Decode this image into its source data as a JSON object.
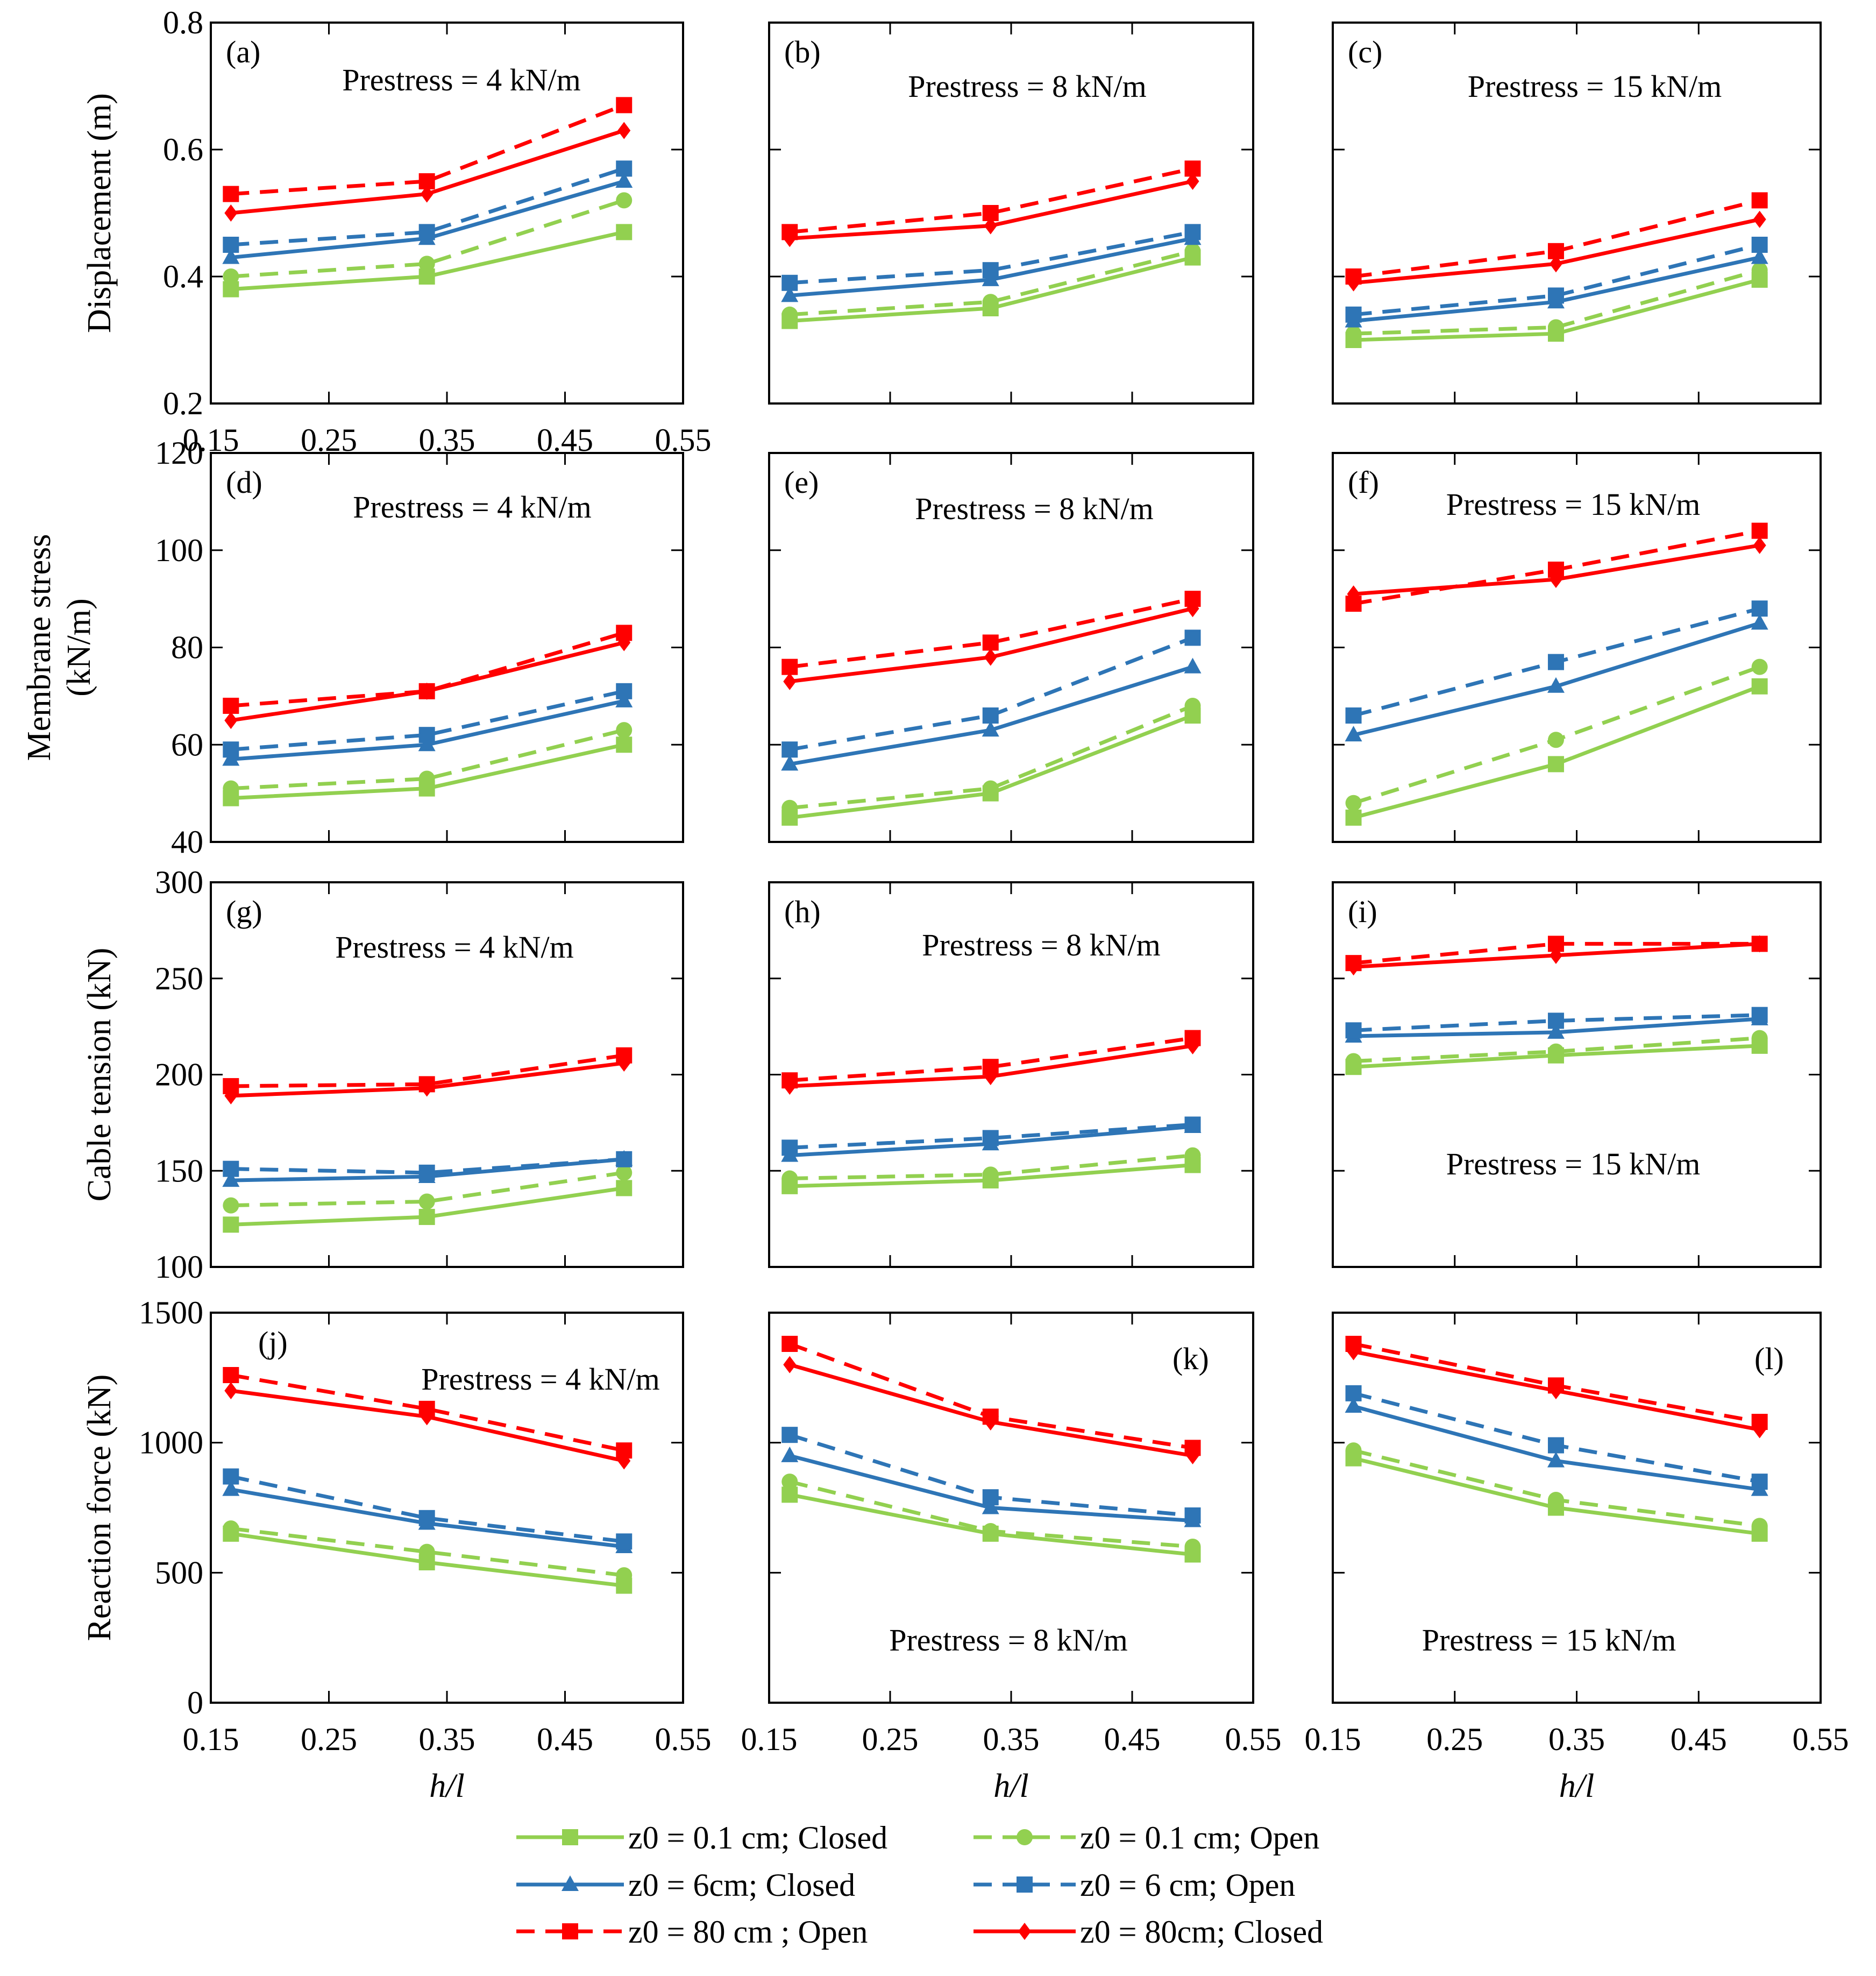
{
  "figure": {
    "legend": [
      {
        "key": "s1",
        "label": "z0 = 0.1 cm; Closed",
        "color": "#92d050",
        "dash": false,
        "marker": "square"
      },
      {
        "key": "s2",
        "label": "z0 = 0.1 cm; Open",
        "color": "#92d050",
        "dash": true,
        "marker": "circle"
      },
      {
        "key": "s3",
        "label": "z0 = 6cm; Closed",
        "color": "#2e75b6",
        "dash": false,
        "marker": "triangle"
      },
      {
        "key": "s4",
        "label": "z0 = 6 cm; Open",
        "color": "#2e75b6",
        "dash": true,
        "marker": "square"
      },
      {
        "key": "s5",
        "label": "z0 = 80 cm ; Open",
        "color": "#ff0000",
        "dash": true,
        "marker": "square"
      },
      {
        "key": "s6",
        "label": "z0 = 80cm; Closed",
        "color": "#ff0000",
        "dash": false,
        "marker": "diamond"
      }
    ]
  },
  "chart_data": [
    {
      "id": "a",
      "type": "line",
      "row": 0,
      "col": 0,
      "title": "(a)",
      "annotation": "Prestress = 4 kN/m",
      "annotation_position": "top",
      "ylabel": "Displacement (m)",
      "ylim": [
        0.2,
        0.8
      ],
      "yticks": [
        0.2,
        0.4,
        0.6,
        0.8
      ],
      "ytick_labels": [
        "0.2",
        "0.4",
        "0.6",
        "0.8"
      ],
      "xlim": [
        0.15,
        0.55
      ],
      "xticks": [
        0.15,
        0.25,
        0.35,
        0.45,
        0.55
      ],
      "xtick_labels": [
        "0.15",
        "0.25",
        "0.35",
        "0.45",
        "0.55"
      ],
      "xlabel": "",
      "x": [
        0.167,
        0.333,
        0.5
      ],
      "series": [
        {
          "key": "s1",
          "values": [
            0.38,
            0.4,
            0.47
          ]
        },
        {
          "key": "s2",
          "values": [
            0.4,
            0.42,
            0.52
          ]
        },
        {
          "key": "s3",
          "values": [
            0.43,
            0.46,
            0.55
          ]
        },
        {
          "key": "s4",
          "values": [
            0.45,
            0.47,
            0.57
          ]
        },
        {
          "key": "s5",
          "values": [
            0.53,
            0.55,
            0.67
          ]
        },
        {
          "key": "s6",
          "values": [
            0.5,
            0.53,
            0.63
          ]
        }
      ]
    },
    {
      "id": "b",
      "type": "line",
      "row": 0,
      "col": 1,
      "title": "(b)",
      "annotation": "Prestress = 8 kN/m",
      "annotation_position": "top",
      "ylabel": "",
      "ylim": [
        0.2,
        0.8
      ],
      "yticks": [
        0.2,
        0.4,
        0.6,
        0.8
      ],
      "ytick_labels": [],
      "xlim": [
        0.15,
        0.55
      ],
      "xticks": [
        0.15,
        0.25,
        0.35,
        0.45,
        0.55
      ],
      "xtick_labels": [],
      "xlabel": "",
      "x": [
        0.167,
        0.333,
        0.5
      ],
      "series": [
        {
          "key": "s1",
          "values": [
            0.33,
            0.35,
            0.43
          ]
        },
        {
          "key": "s2",
          "values": [
            0.34,
            0.36,
            0.44
          ]
        },
        {
          "key": "s3",
          "values": [
            0.37,
            0.395,
            0.46
          ]
        },
        {
          "key": "s4",
          "values": [
            0.39,
            0.41,
            0.47
          ]
        },
        {
          "key": "s5",
          "values": [
            0.47,
            0.5,
            0.57
          ]
        },
        {
          "key": "s6",
          "values": [
            0.46,
            0.48,
            0.55
          ]
        }
      ]
    },
    {
      "id": "c",
      "type": "line",
      "row": 0,
      "col": 2,
      "title": "(c)",
      "annotation": "Prestress = 15 kN/m",
      "annotation_position": "top",
      "ylabel": "",
      "ylim": [
        0.2,
        0.8
      ],
      "yticks": [
        0.2,
        0.4,
        0.6,
        0.8
      ],
      "ytick_labels": [],
      "xlim": [
        0.15,
        0.55
      ],
      "xticks": [
        0.15,
        0.25,
        0.35,
        0.45,
        0.55
      ],
      "xtick_labels": [],
      "xlabel": "",
      "x": [
        0.167,
        0.333,
        0.5
      ],
      "series": [
        {
          "key": "s1",
          "values": [
            0.3,
            0.31,
            0.395
          ]
        },
        {
          "key": "s2",
          "values": [
            0.31,
            0.32,
            0.41
          ]
        },
        {
          "key": "s3",
          "values": [
            0.33,
            0.36,
            0.43
          ]
        },
        {
          "key": "s4",
          "values": [
            0.34,
            0.37,
            0.45
          ]
        },
        {
          "key": "s5",
          "values": [
            0.4,
            0.44,
            0.52
          ]
        },
        {
          "key": "s6",
          "values": [
            0.39,
            0.42,
            0.49
          ]
        }
      ]
    },
    {
      "id": "d",
      "type": "line",
      "row": 1,
      "col": 0,
      "title": "(d)",
      "annotation": "Prestress = 4 kN/m",
      "annotation_position": "top",
      "ylabel": "Membrane stress (kN/m)",
      "ylim": [
        40,
        120
      ],
      "yticks": [
        40,
        60,
        80,
        100,
        120
      ],
      "ytick_labels": [
        "40",
        "60",
        "80",
        "100",
        "120"
      ],
      "xlim": [
        0.15,
        0.55
      ],
      "xticks": [
        0.15,
        0.25,
        0.35,
        0.45,
        0.55
      ],
      "xtick_labels": [],
      "xlabel": "",
      "x": [
        0.167,
        0.333,
        0.5
      ],
      "series": [
        {
          "key": "s1",
          "values": [
            49,
            51,
            60
          ]
        },
        {
          "key": "s2",
          "values": [
            51,
            53,
            63
          ]
        },
        {
          "key": "s3",
          "values": [
            57,
            60,
            69
          ]
        },
        {
          "key": "s4",
          "values": [
            59,
            62,
            71
          ]
        },
        {
          "key": "s5",
          "values": [
            68,
            71,
            83
          ]
        },
        {
          "key": "s6",
          "values": [
            65,
            71,
            81
          ]
        }
      ]
    },
    {
      "id": "e",
      "type": "line",
      "row": 1,
      "col": 1,
      "title": "(e)",
      "annotation": "Prestress = 8 kN/m",
      "annotation_position": "top",
      "ylabel": "",
      "ylim": [
        40,
        120
      ],
      "yticks": [
        40,
        60,
        80,
        100,
        120
      ],
      "ytick_labels": [],
      "xlim": [
        0.15,
        0.55
      ],
      "xticks": [
        0.15,
        0.25,
        0.35,
        0.45,
        0.55
      ],
      "xtick_labels": [],
      "xlabel": "",
      "x": [
        0.167,
        0.333,
        0.5
      ],
      "series": [
        {
          "key": "s1",
          "values": [
            45,
            50,
            66
          ]
        },
        {
          "key": "s2",
          "values": [
            47,
            51,
            68
          ]
        },
        {
          "key": "s3",
          "values": [
            56,
            63,
            76
          ]
        },
        {
          "key": "s4",
          "values": [
            59,
            66,
            82
          ]
        },
        {
          "key": "s5",
          "values": [
            76,
            81,
            90
          ]
        },
        {
          "key": "s6",
          "values": [
            73,
            78,
            88
          ]
        }
      ]
    },
    {
      "id": "f",
      "type": "line",
      "row": 1,
      "col": 2,
      "title": "(f)",
      "annotation": "Prestress = 15 kN/m",
      "annotation_position": "top",
      "ylabel": "",
      "ylim": [
        40,
        120
      ],
      "yticks": [
        40,
        60,
        80,
        100,
        120
      ],
      "ytick_labels": [],
      "xlim": [
        0.15,
        0.55
      ],
      "xticks": [
        0.15,
        0.25,
        0.35,
        0.45,
        0.55
      ],
      "xtick_labels": [],
      "xlabel": "",
      "x": [
        0.167,
        0.333,
        0.5
      ],
      "series": [
        {
          "key": "s1",
          "values": [
            45,
            56,
            72
          ]
        },
        {
          "key": "s2",
          "values": [
            48,
            61,
            76
          ]
        },
        {
          "key": "s3",
          "values": [
            62,
            72,
            85
          ]
        },
        {
          "key": "s4",
          "values": [
            66,
            77,
            88
          ]
        },
        {
          "key": "s5",
          "values": [
            89,
            96,
            104
          ]
        },
        {
          "key": "s6",
          "values": [
            91,
            94,
            101
          ]
        }
      ]
    },
    {
      "id": "g",
      "type": "line",
      "row": 2,
      "col": 0,
      "title": "(g)",
      "annotation": "Prestress = 4 kN/m",
      "annotation_position": "top",
      "ylabel": "Cable tension (kN)",
      "ylim": [
        100,
        300
      ],
      "yticks": [
        100,
        150,
        200,
        250,
        300
      ],
      "ytick_labels": [
        "100",
        "150",
        "200",
        "250",
        "300"
      ],
      "xlim": [
        0.15,
        0.55
      ],
      "xticks": [
        0.15,
        0.25,
        0.35,
        0.45,
        0.55
      ],
      "xtick_labels": [],
      "xlabel": "",
      "x": [
        0.167,
        0.333,
        0.5
      ],
      "series": [
        {
          "key": "s1",
          "values": [
            122,
            126,
            141
          ]
        },
        {
          "key": "s2",
          "values": [
            132,
            134,
            149
          ]
        },
        {
          "key": "s3",
          "values": [
            145,
            147,
            156
          ]
        },
        {
          "key": "s4",
          "values": [
            151,
            149,
            156
          ]
        },
        {
          "key": "s5",
          "values": [
            194,
            195,
            210
          ]
        },
        {
          "key": "s6",
          "values": [
            189,
            193,
            206
          ]
        }
      ]
    },
    {
      "id": "h",
      "type": "line",
      "row": 2,
      "col": 1,
      "title": "(h)",
      "annotation": "Prestress = 8 kN/m",
      "annotation_position": "top",
      "ylabel": "",
      "ylim": [
        100,
        300
      ],
      "yticks": [
        100,
        150,
        200,
        250,
        300
      ],
      "ytick_labels": [],
      "xlim": [
        0.15,
        0.55
      ],
      "xticks": [
        0.15,
        0.25,
        0.35,
        0.45,
        0.55
      ],
      "xtick_labels": [],
      "xlabel": "",
      "x": [
        0.167,
        0.333,
        0.5
      ],
      "series": [
        {
          "key": "s1",
          "values": [
            142,
            145,
            153
          ]
        },
        {
          "key": "s2",
          "values": [
            146,
            148,
            158
          ]
        },
        {
          "key": "s3",
          "values": [
            158,
            164,
            173
          ]
        },
        {
          "key": "s4",
          "values": [
            162,
            167,
            174
          ]
        },
        {
          "key": "s5",
          "values": [
            197,
            204,
            219
          ]
        },
        {
          "key": "s6",
          "values": [
            194,
            199,
            215
          ]
        }
      ]
    },
    {
      "id": "i",
      "type": "line",
      "row": 2,
      "col": 2,
      "title": "(i)",
      "annotation": "Prestress = 15 kN/m",
      "annotation_position": "bottom",
      "ylabel": "",
      "ylim": [
        100,
        300
      ],
      "yticks": [
        100,
        150,
        200,
        250,
        300
      ],
      "ytick_labels": [],
      "xlim": [
        0.15,
        0.55
      ],
      "xticks": [
        0.15,
        0.25,
        0.35,
        0.45,
        0.55
      ],
      "xtick_labels": [],
      "xlabel": "",
      "x": [
        0.167,
        0.333,
        0.5
      ],
      "series": [
        {
          "key": "s1",
          "values": [
            204,
            210,
            215
          ]
        },
        {
          "key": "s2",
          "values": [
            207,
            212,
            219
          ]
        },
        {
          "key": "s3",
          "values": [
            220,
            222,
            229
          ]
        },
        {
          "key": "s4",
          "values": [
            223,
            228,
            231
          ]
        },
        {
          "key": "s5",
          "values": [
            258,
            268,
            268
          ]
        },
        {
          "key": "s6",
          "values": [
            256,
            262,
            268
          ]
        }
      ]
    },
    {
      "id": "j",
      "type": "line",
      "row": 3,
      "col": 0,
      "title": "(j)",
      "annotation": "Prestress = 4 kN/m",
      "annotation_position": "top",
      "ylabel": "Reaction force (kN)",
      "ylim": [
        0,
        1500
      ],
      "yticks": [
        0,
        500,
        1000,
        1500
      ],
      "ytick_labels": [
        "0",
        "500",
        "1000",
        "1500"
      ],
      "xlim": [
        0.15,
        0.55
      ],
      "xticks": [
        0.15,
        0.25,
        0.35,
        0.45,
        0.55
      ],
      "xtick_labels": [
        "0.15",
        "0.25",
        "0.35",
        "0.45",
        "0.55"
      ],
      "xlabel": "h/l",
      "x": [
        0.167,
        0.333,
        0.5
      ],
      "series": [
        {
          "key": "s1",
          "values": [
            650,
            540,
            450
          ]
        },
        {
          "key": "s2",
          "values": [
            670,
            580,
            490
          ]
        },
        {
          "key": "s3",
          "values": [
            820,
            690,
            600
          ]
        },
        {
          "key": "s4",
          "values": [
            870,
            710,
            620
          ]
        },
        {
          "key": "s5",
          "values": [
            1260,
            1130,
            970
          ]
        },
        {
          "key": "s6",
          "values": [
            1200,
            1100,
            930
          ]
        }
      ]
    },
    {
      "id": "k",
      "type": "line",
      "row": 3,
      "col": 1,
      "title": "(k)",
      "annotation": "Prestress = 8 kN/m",
      "annotation_position": "bottom",
      "ylabel": "",
      "ylim": [
        0,
        1500
      ],
      "yticks": [
        0,
        500,
        1000,
        1500
      ],
      "ytick_labels": [],
      "xlim": [
        0.15,
        0.55
      ],
      "xticks": [
        0.15,
        0.25,
        0.35,
        0.45,
        0.55
      ],
      "xtick_labels": [
        "0.15",
        "0.25",
        "0.35",
        "0.45",
        "0.55"
      ],
      "xlabel": "h/l",
      "x": [
        0.167,
        0.333,
        0.5
      ],
      "series": [
        {
          "key": "s1",
          "values": [
            800,
            650,
            570
          ]
        },
        {
          "key": "s2",
          "values": [
            850,
            660,
            600
          ]
        },
        {
          "key": "s3",
          "values": [
            950,
            750,
            700
          ]
        },
        {
          "key": "s4",
          "values": [
            1030,
            790,
            720
          ]
        },
        {
          "key": "s5",
          "values": [
            1380,
            1100,
            980
          ]
        },
        {
          "key": "s6",
          "values": [
            1300,
            1080,
            950
          ]
        }
      ]
    },
    {
      "id": "l",
      "type": "line",
      "row": 3,
      "col": 2,
      "title": "(l)",
      "annotation": "Prestress = 15 kN/m",
      "annotation_position": "bottom",
      "ylabel": "",
      "ylim": [
        0,
        1500
      ],
      "yticks": [
        0,
        500,
        1000,
        1500
      ],
      "ytick_labels": [],
      "xlim": [
        0.15,
        0.55
      ],
      "xticks": [
        0.15,
        0.25,
        0.35,
        0.45,
        0.55
      ],
      "xtick_labels": [
        "0.15",
        "0.25",
        "0.35",
        "0.45",
        "0.55"
      ],
      "xlabel": "h/l",
      "x": [
        0.167,
        0.333,
        0.5
      ],
      "series": [
        {
          "key": "s1",
          "values": [
            940,
            750,
            650
          ]
        },
        {
          "key": "s2",
          "values": [
            970,
            780,
            680
          ]
        },
        {
          "key": "s3",
          "values": [
            1140,
            930,
            820
          ]
        },
        {
          "key": "s4",
          "values": [
            1190,
            990,
            850
          ]
        },
        {
          "key": "s5",
          "values": [
            1380,
            1220,
            1080
          ]
        },
        {
          "key": "s6",
          "values": [
            1350,
            1200,
            1050
          ]
        }
      ]
    }
  ]
}
